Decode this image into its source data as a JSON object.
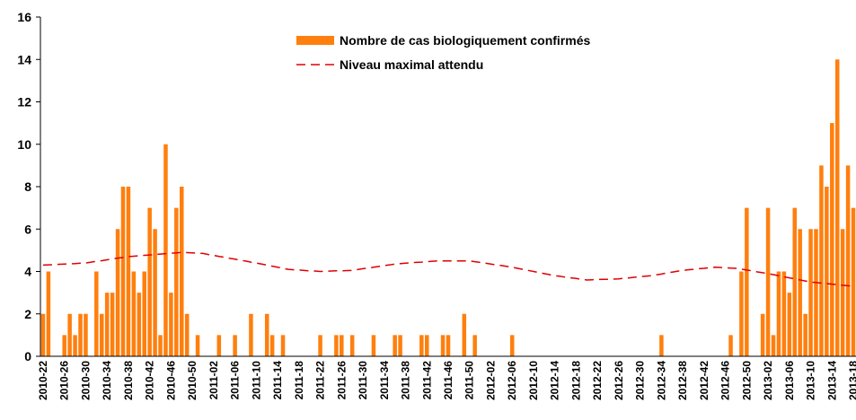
{
  "chart_data": {
    "type": "bar",
    "categories": [
      "2010-22",
      null,
      null,
      null,
      "2010-26",
      null,
      null,
      null,
      "2010-30",
      null,
      null,
      null,
      "2010-34",
      null,
      null,
      null,
      "2010-38",
      null,
      null,
      null,
      "2010-42",
      null,
      null,
      null,
      "2010-46",
      null,
      null,
      null,
      "2010-50",
      null,
      null,
      null,
      "2011-02",
      null,
      null,
      null,
      "2011-06",
      null,
      null,
      null,
      "2011-10",
      null,
      null,
      null,
      "2011-14",
      null,
      null,
      null,
      "2011-18",
      null,
      null,
      null,
      "2011-22",
      null,
      null,
      null,
      "2011-26",
      null,
      null,
      null,
      "2011-30",
      null,
      null,
      null,
      "2011-34",
      null,
      null,
      null,
      "2011-38",
      null,
      null,
      null,
      "2011-42",
      null,
      null,
      null,
      "2011-46",
      null,
      null,
      null,
      "2011-50",
      null,
      null,
      null,
      "2012-02",
      null,
      null,
      null,
      "2012-06",
      null,
      null,
      null,
      "2012-10",
      null,
      null,
      null,
      "2012-14",
      null,
      null,
      null,
      "2012-18",
      null,
      null,
      null,
      "2012-22",
      null,
      null,
      null,
      "2012-26",
      null,
      null,
      null,
      "2012-30",
      null,
      null,
      null,
      "2012-34",
      null,
      null,
      null,
      "2012-38",
      null,
      null,
      null,
      "2012-42",
      null,
      null,
      null,
      "2012-46",
      null,
      null,
      null,
      "2012-50",
      null,
      null,
      null,
      "2013-02",
      null,
      null,
      null,
      "2013-06",
      null,
      null,
      null,
      "2013-10",
      null,
      null,
      null,
      "2013-14",
      null,
      null,
      null,
      "2013-18"
    ],
    "series": [
      {
        "name": "Nombre de cas biologiquement confirmés",
        "type": "bar",
        "color": "#ff7f0e",
        "values": [
          2,
          4,
          0,
          0,
          1,
          2,
          1,
          2,
          2,
          0,
          4,
          2,
          3,
          3,
          6,
          8,
          8,
          4,
          3,
          4,
          7,
          6,
          1,
          10,
          3,
          7,
          8,
          2,
          0,
          1,
          0,
          0,
          0,
          1,
          0,
          0,
          1,
          0,
          0,
          2,
          0,
          0,
          2,
          1,
          0,
          1,
          0,
          0,
          0,
          0,
          0,
          0,
          1,
          0,
          0,
          1,
          1,
          0,
          1,
          0,
          0,
          0,
          1,
          0,
          0,
          0,
          1,
          1,
          0,
          0,
          0,
          1,
          1,
          0,
          0,
          1,
          1,
          0,
          0,
          2,
          0,
          1,
          0,
          0,
          0,
          0,
          0,
          0,
          1,
          0,
          0,
          0,
          0,
          0,
          0,
          0,
          0,
          0,
          0,
          0,
          0,
          0,
          0,
          0,
          0,
          0,
          0,
          0,
          0,
          0,
          0,
          0,
          0,
          0,
          0,
          0,
          1,
          0,
          0,
          0,
          0,
          0,
          0,
          0,
          0,
          0,
          0,
          0,
          0,
          1,
          0,
          4,
          7,
          0,
          0,
          2,
          7,
          1,
          4,
          4,
          3,
          7,
          6,
          2,
          6,
          6,
          9,
          8,
          11,
          14,
          6,
          9,
          7
        ]
      },
      {
        "name": "Niveau maximal attendu",
        "type": "line",
        "color": "#e00000",
        "dashed": true,
        "values": [
          4.3,
          4.31,
          4.32,
          4.34,
          4.35,
          4.36,
          4.37,
          4.39,
          4.4,
          4.44,
          4.48,
          4.51,
          4.55,
          4.59,
          4.63,
          4.66,
          4.7,
          4.72,
          4.74,
          4.76,
          4.78,
          4.8,
          4.82,
          4.84,
          4.86,
          4.88,
          4.9,
          4.89,
          4.88,
          4.86,
          4.85,
          4.8,
          4.76,
          4.71,
          4.67,
          4.62,
          4.58,
          4.53,
          4.49,
          4.44,
          4.4,
          4.35,
          4.3,
          4.25,
          4.2,
          4.15,
          4.1,
          4.08,
          4.07,
          4.05,
          4.03,
          4.02,
          4.0,
          4.01,
          4.02,
          4.03,
          4.03,
          4.04,
          4.05,
          4.09,
          4.13,
          4.16,
          4.2,
          4.24,
          4.28,
          4.31,
          4.35,
          4.37,
          4.39,
          4.41,
          4.43,
          4.44,
          4.46,
          4.48,
          4.5,
          4.5,
          4.5,
          4.5,
          4.5,
          4.5,
          4.5,
          4.46,
          4.43,
          4.39,
          4.35,
          4.31,
          4.28,
          4.24,
          4.2,
          4.15,
          4.1,
          4.05,
          4.0,
          3.95,
          3.9,
          3.85,
          3.8,
          3.77,
          3.73,
          3.7,
          3.67,
          3.63,
          3.6,
          3.61,
          3.62,
          3.63,
          3.63,
          3.64,
          3.65,
          3.68,
          3.7,
          3.73,
          3.75,
          3.78,
          3.8,
          3.84,
          3.88,
          3.93,
          3.97,
          4.01,
          4.05,
          4.08,
          4.1,
          4.13,
          4.15,
          4.18,
          4.2,
          4.19,
          4.18,
          4.16,
          4.15,
          4.11,
          4.07,
          4.03,
          3.98,
          3.94,
          3.9,
          3.85,
          3.8,
          3.75,
          3.7,
          3.65,
          3.6,
          3.55,
          3.5,
          3.48,
          3.45,
          3.43,
          3.4,
          3.38,
          3.35,
          3.33,
          3.3
        ]
      }
    ],
    "ylim": [
      0,
      16
    ],
    "yticks": [
      0,
      2,
      4,
      6,
      8,
      10,
      12,
      14,
      16
    ],
    "grid": false,
    "legend": "top"
  }
}
